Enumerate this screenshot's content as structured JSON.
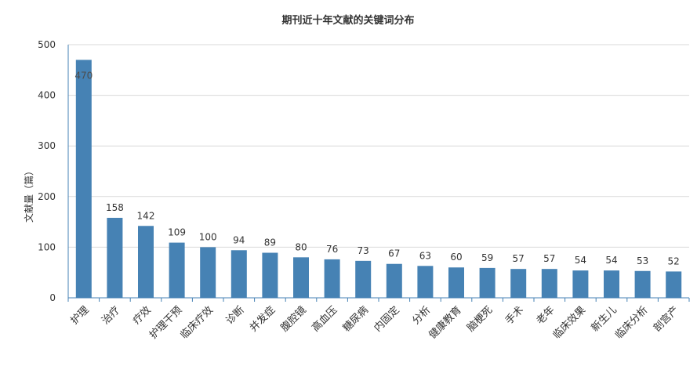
{
  "chart_data": {
    "type": "bar",
    "title": "期刊近十年文献的关键词分布",
    "xlabel": "",
    "ylabel": "文献量（篇）",
    "ylim": [
      0,
      500
    ],
    "yticks": [
      0,
      100,
      200,
      300,
      400,
      500
    ],
    "grid": true,
    "legend": "none",
    "colors": {
      "bar": "#4682b4",
      "axis": "#4682b4",
      "grid": "#d9d9d9"
    },
    "categories": [
      "护理",
      "治疗",
      "疗效",
      "护理干预",
      "临床疗效",
      "诊断",
      "并发症",
      "腹腔镜",
      "高血压",
      "糖尿病",
      "内固定",
      "分析",
      "健康教育",
      "脑梗死",
      "手术",
      "老年",
      "临床效果",
      "新生儿",
      "临床分析",
      "剖宫产"
    ],
    "values": [
      470,
      158,
      142,
      109,
      100,
      94,
      89,
      80,
      76,
      73,
      67,
      63,
      60,
      59,
      57,
      57,
      54,
      54,
      53,
      52
    ]
  }
}
